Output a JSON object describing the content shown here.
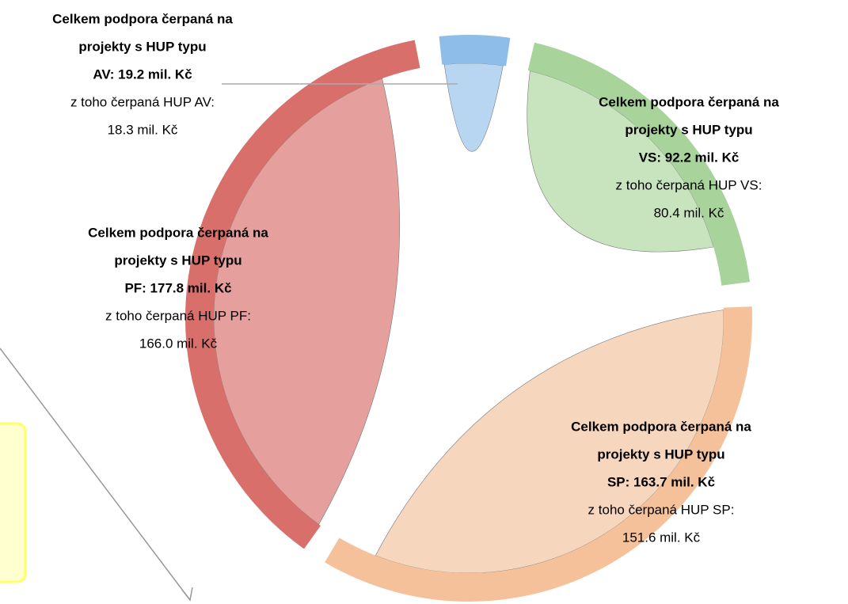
{
  "chart_data": {
    "type": "chord",
    "groups": [
      {
        "name": "AV",
        "title_lines": [
          "Celkem podpora čerpaná na",
          "projekty s HUP typu"
        ],
        "total": 19.2,
        "total_label": "AV: 19.2 mil. Kč",
        "hup_text": "z toho čerpaná HUP AV:",
        "hup": 18.3,
        "hup_label": "18.3 mil. Kč",
        "color": "#8dbde8",
        "inner_color": "#b8d6f1"
      },
      {
        "name": "VS",
        "title_lines": [
          "Celkem podpora čerpaná na",
          "projekty s HUP typu"
        ],
        "total": 92.2,
        "total_label": "VS: 92.2 mil. Kč",
        "hup_text": "z toho čerpaná HUP VS:",
        "hup": 80.4,
        "hup_label": "80.4 mil. Kč",
        "color": "#a8d39b",
        "inner_color": "#c8e4bf"
      },
      {
        "name": "SP",
        "title_lines": [
          "Celkem podpora čerpaná na",
          "projekty s HUP typu"
        ],
        "total": 163.7,
        "total_label": "SP: 163.7 mil. Kč",
        "hup_text": "z toho čerpaná HUP SP:",
        "hup": 151.6,
        "hup_label": "151.6 mil. Kč",
        "color": "#f4c19b",
        "inner_color": "#f7d6be"
      },
      {
        "name": "PF",
        "title_lines": [
          "Celkem podpora čerpaná na",
          "projekty s HUP typu"
        ],
        "total": 177.8,
        "total_label": "PF: 177.8 mil. Kč",
        "hup_text": "z toho čerpaná HUP PF:",
        "hup": 166.0,
        "hup_label": "166.0 mil. Kč",
        "color": "#d86f6b",
        "inner_color": "#e59f9d"
      }
    ]
  }
}
